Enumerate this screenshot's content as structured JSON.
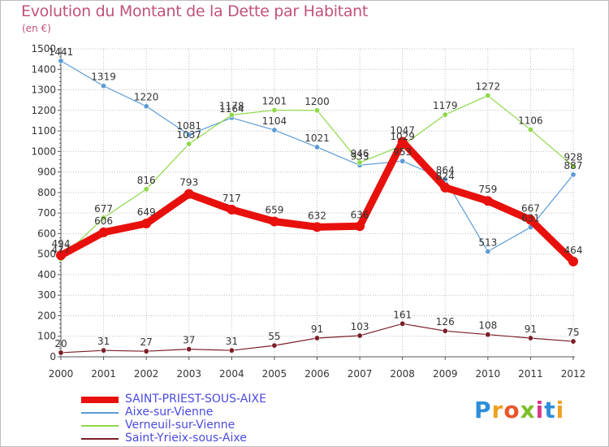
{
  "title": "Evolution du Montant de la Dette par Habitant",
  "subtitle": "(en €)",
  "logo_text": "Proxiti",
  "colors": {
    "title": "#c0527a",
    "axis": "#555555",
    "grid": "#bfbfbf",
    "label": "#333333"
  },
  "chart_data": {
    "type": "line",
    "title": "Evolution du Montant de la Dette par Habitant",
    "subtitle": "(en €)",
    "xlabel": "",
    "ylabel": "",
    "ylim": [
      0,
      1500
    ],
    "ytick_step": 100,
    "grid": true,
    "legend_position": "bottom-left",
    "x": [
      "2000",
      "2001",
      "2002",
      "2003",
      "2004",
      "2005",
      "2006",
      "2007",
      "2008",
      "2009",
      "2010",
      "2011",
      "2012"
    ],
    "series": [
      {
        "name": "SAINT-PRIEST-SOUS-AIXE",
        "color": "#e8100c",
        "emphasis": true,
        "values": [
          494,
          606,
          649,
          793,
          717,
          659,
          632,
          636,
          1047,
          824,
          759,
          667,
          464
        ],
        "labels": [
          "494",
          "606",
          "649",
          "793",
          "717",
          "659",
          "632",
          "636",
          "1047",
          "824",
          "759",
          "667",
          "464"
        ]
      },
      {
        "name": "Aixe-sur-Vienne",
        "color": "#5b9bd5",
        "values": [
          1441,
          1319,
          1220,
          1081,
          1164,
          1104,
          1021,
          933,
          953,
          864,
          513,
          631,
          887
        ],
        "labels": [
          "1441",
          "1319",
          "1220",
          "1081",
          "1164",
          "1104",
          "1021",
          "933",
          "953",
          "864",
          "513",
          "631",
          "887"
        ]
      },
      {
        "name": "Verneuil-sur-Vienne",
        "color": "#8ed84a",
        "values": [
          477,
          677,
          816,
          1037,
          1178,
          1201,
          1200,
          946,
          1029,
          1179,
          1272,
          1106,
          928
        ],
        "labels": [
          "477",
          "677",
          "816",
          "1037",
          "1178",
          "1201",
          "1200",
          "946",
          "1029",
          "1179",
          "1272",
          "1106",
          "928"
        ]
      },
      {
        "name": "Saint-Yrieix-sous-Aixe",
        "color": "#7a1e28",
        "values": [
          20,
          31,
          27,
          37,
          31,
          55,
          91,
          103,
          161,
          126,
          108,
          91,
          75
        ],
        "labels": [
          "20",
          "31",
          "27",
          "37",
          "31",
          "55",
          "91",
          "103",
          "161",
          "126",
          "108",
          "91",
          "75"
        ]
      }
    ]
  }
}
